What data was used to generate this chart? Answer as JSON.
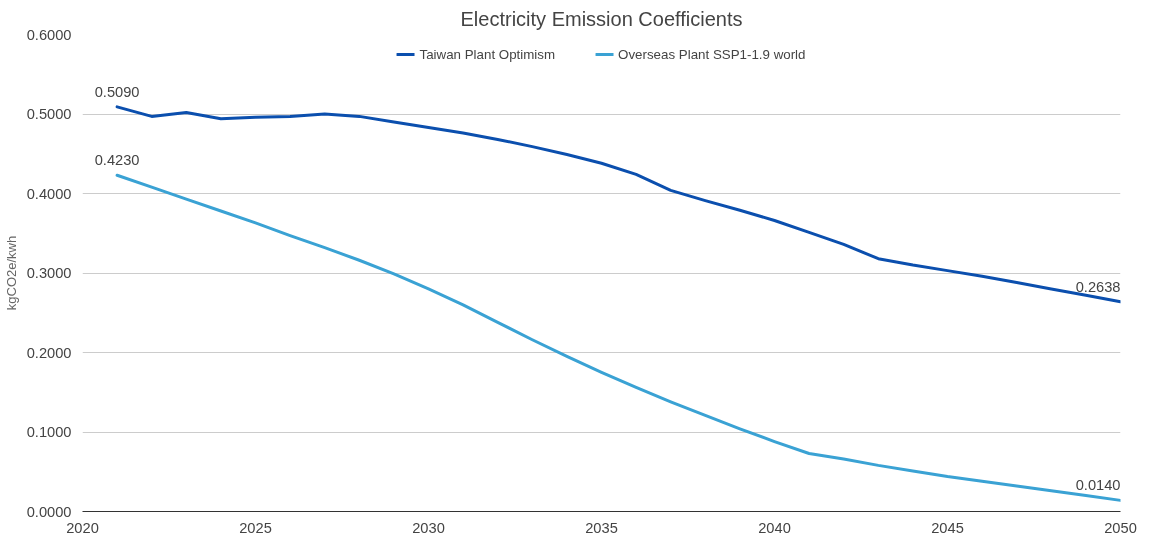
{
  "chart_data": {
    "type": "line",
    "title": "Electricity Emission Coefficients",
    "ylabel": "kgCO2e/kwh",
    "x": [
      2021,
      2022,
      2023,
      2024,
      2025,
      2026,
      2027,
      2028,
      2029,
      2030,
      2031,
      2032,
      2033,
      2034,
      2035,
      2036,
      2037,
      2038,
      2039,
      2040,
      2041,
      2042,
      2043,
      2044,
      2045,
      2046,
      2047,
      2048,
      2049,
      2050
    ],
    "series": [
      {
        "name": "Taiwan Plant Optimism",
        "color": "#0b4fae",
        "values": [
          0.509,
          0.497,
          0.502,
          0.494,
          0.496,
          0.497,
          0.5,
          0.497,
          0.49,
          0.483,
          0.476,
          0.468,
          0.459,
          0.449,
          0.438,
          0.424,
          0.404,
          0.391,
          0.379,
          0.366,
          0.351,
          0.336,
          0.318,
          0.31,
          0.303,
          0.296,
          0.288,
          0.28,
          0.272,
          0.2638
        ],
        "value_labels": [
          "0.5090",
          null,
          null,
          null,
          null,
          null,
          null,
          null,
          null,
          null,
          null,
          null,
          null,
          null,
          null,
          null,
          null,
          null,
          null,
          null,
          null,
          null,
          null,
          null,
          null,
          null,
          null,
          null,
          null,
          "0.2638"
        ]
      },
      {
        "name": "Overseas Plant SSP1-1.9 world",
        "color": "#3aa2d4",
        "values": [
          0.423,
          0.408,
          0.393,
          0.378,
          0.363,
          0.347,
          0.332,
          0.316,
          0.299,
          0.28,
          0.26,
          0.238,
          0.216,
          0.195,
          0.175,
          0.156,
          0.138,
          0.121,
          0.104,
          0.088,
          0.073,
          0.066,
          0.058,
          0.051,
          0.044,
          0.038,
          0.032,
          0.026,
          0.02,
          0.014
        ],
        "value_labels": [
          "0.4230",
          null,
          null,
          null,
          null,
          null,
          null,
          null,
          null,
          null,
          null,
          null,
          null,
          null,
          null,
          null,
          null,
          null,
          null,
          null,
          null,
          null,
          null,
          null,
          null,
          null,
          null,
          null,
          null,
          "0.0140"
        ]
      }
    ],
    "xlim": [
      2020,
      2050
    ],
    "xticks": [
      2020,
      2025,
      2030,
      2035,
      2040,
      2045,
      2050
    ],
    "ylim": [
      0,
      0.6
    ],
    "yticks": [
      {
        "value": 0,
        "label": "0.0000"
      },
      {
        "value": 0.1,
        "label": "0.1000"
      },
      {
        "value": 0.2,
        "label": "0.2000"
      },
      {
        "value": 0.3,
        "label": "0.3000"
      },
      {
        "value": 0.4,
        "label": "0.4000"
      },
      {
        "value": 0.5,
        "label": "0.5000"
      },
      {
        "value": 0.6,
        "label": "0.6000"
      }
    ],
    "grid": "y",
    "legend": "top",
    "line_style": "solid"
  }
}
